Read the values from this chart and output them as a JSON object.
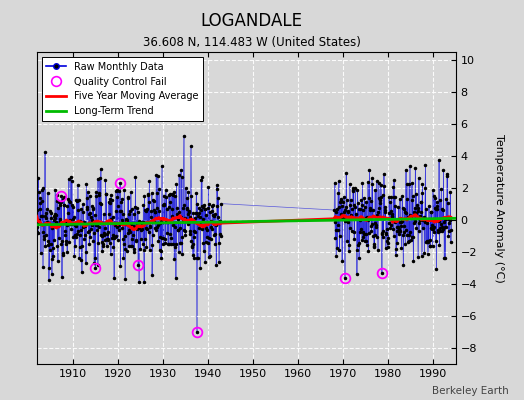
{
  "title": "LOGANDALE",
  "subtitle": "36.608 N, 114.483 W (United States)",
  "ylabel": "Temperature Anomaly (°C)",
  "credit": "Berkeley Earth",
  "xlim": [
    1902,
    1995
  ],
  "ylim": [
    -9,
    10.5
  ],
  "yticks": [
    -8,
    -6,
    -4,
    -2,
    0,
    2,
    4,
    6,
    8,
    10
  ],
  "xticks": [
    1910,
    1920,
    1930,
    1940,
    1950,
    1960,
    1970,
    1980,
    1990
  ],
  "bg_color": "#d8d8d8",
  "plot_bg_color": "#d8d8d8",
  "grid_color": "#ffffff",
  "raw_color": "#0000dd",
  "moving_avg_color": "#ff0000",
  "trend_color": "#00bb00",
  "qc_fail_color": "#ff00ff",
  "gap_start": 1943.0,
  "gap_end": 1968.0,
  "data_start": 1902.0,
  "data_end": 1994.0,
  "seed": 12345,
  "noise_std": 1.4,
  "outlier_year": 1937.5,
  "outlier_val": -7.0
}
